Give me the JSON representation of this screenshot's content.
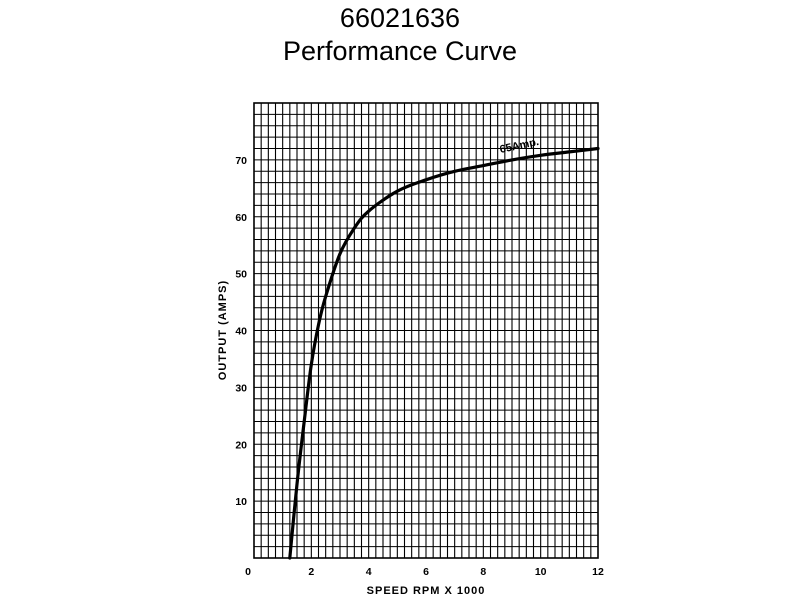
{
  "chart_data": {
    "type": "line",
    "title": "66021636",
    "subtitle": "Performance Curve",
    "xlabel": "SPEED RPM X 1000",
    "ylabel": "OUTPUT (AMPS)",
    "xlim": [
      0,
      12
    ],
    "ylim": [
      0,
      80
    ],
    "x_ticks": [
      "0",
      "2",
      "4",
      "6",
      "8",
      "10",
      "12"
    ],
    "y_ticks": [
      "10",
      "20",
      "30",
      "40",
      "50",
      "60",
      "70"
    ],
    "grid": true,
    "series": [
      {
        "name": "65Amp.",
        "x": [
          1.25,
          1.5,
          1.75,
          2.0,
          2.25,
          2.5,
          3.0,
          3.5,
          4.0,
          5.0,
          6.0,
          7.0,
          8.0,
          9.0,
          10.0,
          11.0,
          12.0
        ],
        "y": [
          0,
          13,
          24,
          34,
          41,
          46,
          53.5,
          58,
          61,
          64.5,
          66.5,
          68,
          69,
          70,
          70.8,
          71.4,
          72
        ]
      }
    ],
    "annotations": [
      "65Amp."
    ],
    "colors": {
      "line": "#000000",
      "grid": "#000000",
      "background": "#ffffff"
    }
  }
}
